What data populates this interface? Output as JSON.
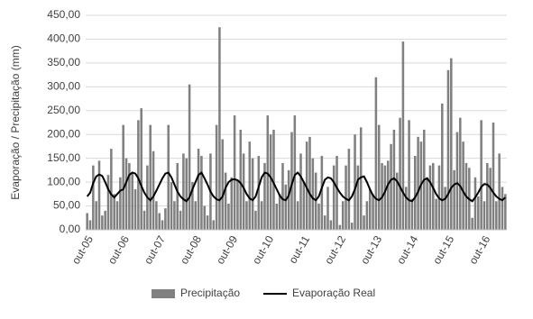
{
  "chart_data": {
    "type": "bar",
    "y_label": "Evaporação / Precipitação (mm)",
    "categories": [
      "out-05",
      null,
      null,
      null,
      null,
      null,
      null,
      null,
      null,
      null,
      null,
      null,
      "out-06",
      null,
      null,
      null,
      null,
      null,
      null,
      null,
      null,
      null,
      null,
      null,
      "out-07",
      null,
      null,
      null,
      null,
      null,
      null,
      null,
      null,
      null,
      null,
      null,
      "out-08",
      null,
      null,
      null,
      null,
      null,
      null,
      null,
      null,
      null,
      null,
      null,
      "out-09",
      null,
      null,
      null,
      null,
      null,
      null,
      null,
      null,
      null,
      null,
      null,
      "out-10",
      null,
      null,
      null,
      null,
      null,
      null,
      null,
      null,
      null,
      null,
      null,
      "out-11",
      null,
      null,
      null,
      null,
      null,
      null,
      null,
      null,
      null,
      null,
      null,
      "out-12",
      null,
      null,
      null,
      null,
      null,
      null,
      null,
      null,
      null,
      null,
      null,
      "out-13",
      null,
      null,
      null,
      null,
      null,
      null,
      null,
      null,
      null,
      null,
      null,
      "out-14",
      null,
      null,
      null,
      null,
      null,
      null,
      null,
      null,
      null,
      null,
      null,
      "out-15",
      null,
      null,
      null,
      null,
      null,
      null,
      null,
      null,
      null,
      null,
      null,
      "out-16",
      null,
      null,
      null,
      null,
      null,
      null,
      null
    ],
    "series": [
      {
        "name": "Precipitação",
        "type": "bar",
        "color": "#808080",
        "values": [
          35,
          20,
          135,
          60,
          145,
          30,
          40,
          115,
          170,
          75,
          60,
          110,
          220,
          150,
          140,
          120,
          85,
          230,
          255,
          40,
          135,
          220,
          165,
          60,
          35,
          20,
          45,
          220,
          100,
          60,
          140,
          40,
          160,
          150,
          305,
          100,
          60,
          170,
          155,
          50,
          30,
          160,
          20,
          220,
          425,
          190,
          120,
          55,
          110,
          240,
          105,
          210,
          160,
          60,
          185,
          150,
          40,
          155,
          60,
          140,
          240,
          200,
          210,
          55,
          75,
          140,
          95,
          125,
          205,
          240,
          60,
          160,
          100,
          185,
          195,
          150,
          120,
          55,
          155,
          30,
          90,
          20,
          135,
          155,
          10,
          60,
          135,
          170,
          15,
          200,
          135,
          215,
          30,
          60,
          85,
          75,
          320,
          220,
          140,
          135,
          145,
          180,
          210,
          120,
          235,
          395,
          90,
          230,
          65,
          155,
          195,
          185,
          210,
          110,
          135,
          140,
          65,
          135,
          265,
          90,
          335,
          360,
          125,
          205,
          235,
          185,
          140,
          130,
          25,
          110,
          70,
          230,
          60,
          140,
          130,
          225,
          60,
          160,
          90,
          75
        ]
      },
      {
        "name": "Evaporação Real",
        "type": "line",
        "color": "#000000",
        "values": [
          70,
          78,
          98,
          112,
          116,
          113,
          100,
          85,
          74,
          68,
          75,
          82,
          85,
          100,
          115,
          120,
          118,
          108,
          92,
          78,
          68,
          62,
          70,
          82,
          95,
          108,
          118,
          120,
          110,
          95,
          80,
          70,
          64,
          60,
          68,
          85,
          100,
          115,
          120,
          108,
          95,
          80,
          70,
          64,
          62,
          70,
          88,
          100,
          105,
          106,
          104,
          98,
          88,
          75,
          66,
          62,
          70,
          90,
          110,
          120,
          118,
          110,
          98,
          85,
          72,
          64,
          62,
          72,
          95,
          115,
          120,
          112,
          100,
          88,
          75,
          66,
          62,
          70,
          88,
          105,
          110,
          108,
          100,
          88,
          78,
          70,
          65,
          62,
          70,
          85,
          105,
          110,
          112,
          100,
          85,
          72,
          65,
          62,
          68,
          80,
          95,
          105,
          108,
          102,
          90,
          78,
          68,
          62,
          60,
          68,
          80,
          95,
          105,
          108,
          100,
          88,
          75,
          66,
          62,
          65,
          75,
          88,
          95,
          98,
          92,
          80,
          70,
          64,
          60,
          68,
          78,
          90,
          96,
          95,
          88,
          78,
          70,
          65,
          62,
          68
        ]
      }
    ],
    "ylim": [
      0,
      450
    ],
    "yticks": [
      {
        "value": 0,
        "label": "0,00"
      },
      {
        "value": 50,
        "label": "50,00"
      },
      {
        "value": 100,
        "label": "100,00"
      },
      {
        "value": 150,
        "label": "150,00"
      },
      {
        "value": 200,
        "label": "200,00"
      },
      {
        "value": 250,
        "label": "250,00"
      },
      {
        "value": 300,
        "label": "300,00"
      },
      {
        "value": 350,
        "label": "350,00"
      },
      {
        "value": 400,
        "label": "400,00"
      },
      {
        "value": 450,
        "label": "450,00"
      }
    ],
    "grid": true,
    "legend": "bottom"
  }
}
